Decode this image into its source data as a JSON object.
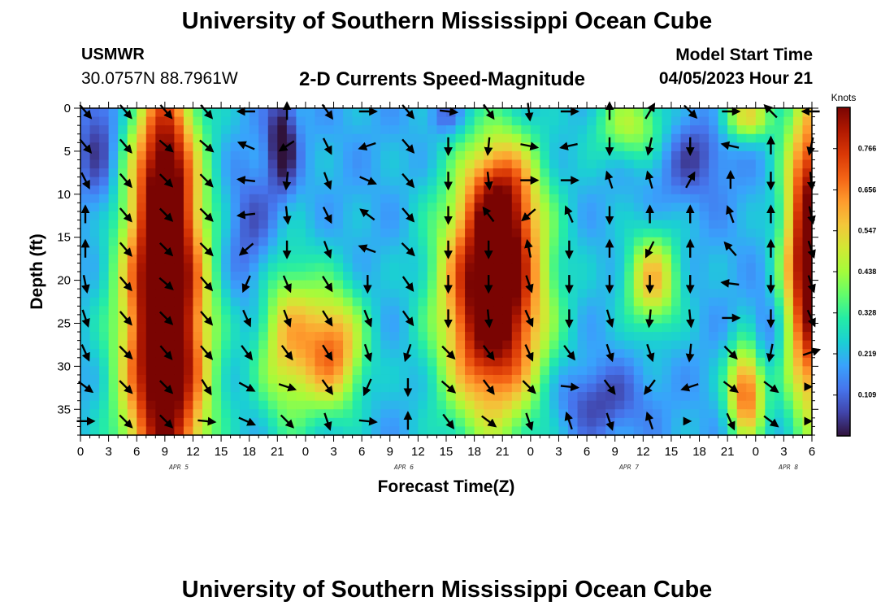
{
  "header": {
    "title": "University of Southern Mississippi Ocean Cube",
    "station": "USMWR",
    "coordinates": "30.0757N  88.7961W",
    "subtitle": "2-D Currents Speed-Magnitude",
    "model_start_label": "Model Start Time",
    "model_start_value": "04/05/2023 Hour 21"
  },
  "footer": {
    "title": "University of Southern Mississippi Ocean Cube"
  },
  "colors": {
    "arrow": "#000000",
    "colormap": [
      "#30123b",
      "#4145ab",
      "#4675ed",
      "#39a2fc",
      "#1bcfd4",
      "#24eca6",
      "#61fc6c",
      "#a4fc3b",
      "#d1e834",
      "#f3c63a",
      "#fe9b2d",
      "#f36315",
      "#d93806",
      "#b11901",
      "#7a0402"
    ]
  },
  "chart_data": {
    "type": "heatmap",
    "title": "2-D Currents Speed-Magnitude",
    "xlabel": "Forecast Time(Z)",
    "ylabel": "Depth (ft)",
    "xlim": [
      0,
      78
    ],
    "ylim": [
      38,
      0
    ],
    "y_ticks": [
      0,
      5,
      10,
      15,
      20,
      25,
      30,
      35
    ],
    "x_ticks": [
      0,
      3,
      6,
      9,
      12,
      15,
      18,
      21,
      24,
      27,
      30,
      33,
      36,
      39,
      42,
      45,
      48,
      51,
      54,
      57,
      60,
      63,
      66,
      69,
      72,
      75,
      78
    ],
    "x_tick_labels": [
      "0",
      "3",
      "6",
      "9",
      "12",
      "15",
      "18",
      "21",
      "0",
      "3",
      "6",
      "9",
      "12",
      "15",
      "18",
      "21",
      "0",
      "3",
      "6",
      "9",
      "12",
      "15",
      "18",
      "21",
      "0",
      "3",
      "6"
    ],
    "day_labels": [
      {
        "label": "APR 5",
        "x": 10.5
      },
      {
        "label": "APR 6",
        "x": 34.5
      },
      {
        "label": "APR 7",
        "x": 58.5
      },
      {
        "label": "APR 8",
        "x": 75.5
      }
    ],
    "colorbar": {
      "units": "Knots",
      "range": [
        0.0,
        0.876
      ],
      "ticks": [
        0.109,
        0.219,
        0.328,
        0.438,
        0.547,
        0.656,
        0.766
      ]
    },
    "speed_features": [
      {
        "x": 9,
        "y": 26,
        "sx": 3.2,
        "sy": 16,
        "v": 0.85
      },
      {
        "x": 9,
        "y": 6,
        "sx": 2.0,
        "sy": 8,
        "v": 0.36
      },
      {
        "x": 22,
        "y": 27,
        "sx": 2.3,
        "sy": 7,
        "v": 0.34
      },
      {
        "x": 27,
        "y": 28,
        "sx": 2.3,
        "sy": 5,
        "v": 0.45
      },
      {
        "x": 44,
        "y": 22,
        "sx": 3.8,
        "sy": 10,
        "v": 0.82
      },
      {
        "x": 45,
        "y": 10,
        "sx": 2.5,
        "sy": 5,
        "v": 0.32
      },
      {
        "x": 61,
        "y": 20,
        "sx": 2.0,
        "sy": 4,
        "v": 0.37
      },
      {
        "x": 71,
        "y": 33,
        "sx": 1.4,
        "sy": 4,
        "v": 0.5
      },
      {
        "x": 71,
        "y": 1,
        "sx": 2.0,
        "sy": 2,
        "v": 0.32
      },
      {
        "x": 78,
        "y": 17,
        "sx": 2.0,
        "sy": 13,
        "v": 0.8
      },
      {
        "x": 59,
        "y": 2,
        "sx": 3.0,
        "sy": 3,
        "v": 0.26
      },
      {
        "x": 21.5,
        "y": 4,
        "sx": 1.1,
        "sy": 4,
        "v": -0.24
      },
      {
        "x": 2,
        "y": 4,
        "sx": 1.6,
        "sy": 6,
        "v": -0.16
      },
      {
        "x": 18,
        "y": 15,
        "sx": 2.2,
        "sy": 6,
        "v": -0.13
      },
      {
        "x": 65,
        "y": 5,
        "sx": 3.0,
        "sy": 4,
        "v": -0.14
      },
      {
        "x": 55,
        "y": 34,
        "sx": 3.5,
        "sy": 3,
        "v": -0.14
      },
      {
        "x": 39,
        "y": 1,
        "sx": 1.2,
        "sy": 1.5,
        "v": -0.12
      },
      {
        "x": 73,
        "y": 26,
        "sx": 1.2,
        "sy": 3,
        "v": -0.1
      }
    ],
    "speed_base": 0.2,
    "vectors": {
      "x": [
        0,
        4.3,
        8.6,
        12.9,
        17.2,
        21.5,
        25.8,
        30.1,
        34.4,
        38.7,
        43.0,
        47.3,
        51.6,
        55.9,
        60.2,
        64.5,
        68.8,
        73.1,
        77.4
      ],
      "y": [
        0,
        4,
        8,
        12,
        16,
        20,
        24,
        28,
        32,
        36
      ],
      "u": [
        [
          0.6,
          0.6,
          0.6,
          0.6,
          -0.3,
          0.0,
          0.5,
          0.8,
          0.6,
          0.9,
          0.5,
          0.1,
          0.4,
          0.0,
          0.3,
          0.7,
          0.8,
          -0.7,
          -0.3
        ],
        [
          0.5,
          0.6,
          0.7,
          0.7,
          -0.7,
          -0.6,
          0.4,
          -0.6,
          0.6,
          0.0,
          -0.1,
          1.0,
          -0.9,
          0.0,
          -0.2,
          0.0,
          -0.9,
          0.0,
          -0.2
        ],
        [
          0.4,
          0.6,
          0.7,
          0.6,
          -0.9,
          -0.1,
          0.3,
          0.7,
          0.6,
          0.0,
          0.1,
          1.0,
          1.0,
          -0.3,
          -0.2,
          0.5,
          0.0,
          0.0,
          0.1
        ],
        [
          0.0,
          0.6,
          0.6,
          0.7,
          -0.9,
          0.1,
          0.4,
          -0.8,
          0.6,
          0.0,
          -0.6,
          -0.7,
          -0.4,
          0.0,
          0.0,
          0.0,
          -0.3,
          0.0,
          0.2
        ],
        [
          0.0,
          0.6,
          0.7,
          0.6,
          -0.7,
          0.0,
          0.3,
          -0.8,
          0.7,
          0.0,
          0.0,
          -0.2,
          0.0,
          0.0,
          -0.5,
          0.0,
          -0.7,
          0.0,
          0.3
        ],
        [
          0.2,
          0.6,
          0.7,
          0.6,
          -0.4,
          0.3,
          0.5,
          0.0,
          0.5,
          0.0,
          0.0,
          0.3,
          0.0,
          0.0,
          0.0,
          0.0,
          -0.8,
          0.0,
          0.3
        ],
        [
          0.3,
          0.6,
          0.7,
          0.6,
          0.4,
          0.3,
          0.5,
          0.4,
          0.5,
          0.0,
          0.1,
          0.4,
          0.0,
          0.3,
          -0.1,
          0.1,
          0.9,
          0.0,
          0.4
        ],
        [
          0.4,
          0.7,
          0.6,
          0.6,
          0.6,
          0.6,
          0.5,
          0.3,
          -0.3,
          0.7,
          0.6,
          0.4,
          0.6,
          0.3,
          0.3,
          -0.1,
          0.7,
          -0.2,
          0.9
        ],
        [
          0.8,
          0.7,
          0.7,
          0.5,
          0.9,
          0.9,
          0.5,
          -0.4,
          0.0,
          0.7,
          0.6,
          0.7,
          1.0,
          0.6,
          -0.6,
          -0.9,
          0.8,
          0.8,
          0.0
        ],
        [
          1.0,
          0.7,
          0.7,
          1.0,
          0.9,
          0.7,
          0.3,
          1.0,
          0.0,
          0.6,
          0.8,
          0.3,
          -0.3,
          0.3,
          -0.3,
          0.0,
          0.4,
          0.8,
          0.0
        ]
      ],
      "v": [
        [
          0.7,
          0.7,
          0.7,
          0.7,
          0.0,
          -0.1,
          0.7,
          0.0,
          0.7,
          0.1,
          0.7,
          0.8,
          0.0,
          -0.1,
          -0.5,
          0.7,
          0.0,
          -0.7,
          0.0
        ],
        [
          0.6,
          0.7,
          0.6,
          0.6,
          -0.3,
          0.4,
          0.8,
          0.2,
          0.7,
          0.7,
          1.0,
          0.2,
          0.2,
          0.9,
          0.9,
          0.8,
          -0.2,
          -0.5,
          0.9
        ],
        [
          0.8,
          0.7,
          0.7,
          0.6,
          -0.1,
          1.0,
          0.8,
          0.3,
          0.7,
          0.8,
          0.9,
          0.0,
          0.0,
          -0.9,
          -0.7,
          -0.9,
          -0.1,
          0.5,
          0.9
        ],
        [
          -1.0,
          0.7,
          0.6,
          0.7,
          0.1,
          0.9,
          0.8,
          -0.6,
          0.7,
          0.9,
          -0.8,
          0.6,
          -0.9,
          0.9,
          -1.0,
          -1.0,
          -0.8,
          -1.0,
          0.9
        ],
        [
          -1.0,
          0.7,
          0.7,
          0.6,
          0.6,
          1.0,
          0.8,
          -0.3,
          0.7,
          0.8,
          1.0,
          -1.0,
          1.0,
          -0.9,
          1.0,
          -1.0,
          -0.8,
          -1.0,
          0.9
        ],
        [
          1.0,
          0.7,
          0.6,
          0.7,
          0.9,
          0.7,
          0.8,
          1.0,
          0.7,
          1.0,
          1.0,
          0.9,
          1.0,
          1.0,
          1.0,
          1.0,
          -0.1,
          1.0,
          0.9
        ],
        [
          0.9,
          0.7,
          0.7,
          0.7,
          0.9,
          0.8,
          0.8,
          1.0,
          0.7,
          0.9,
          1.0,
          0.9,
          1.0,
          1.0,
          1.0,
          1.0,
          0.0,
          1.0,
          0.9
        ],
        [
          0.9,
          0.7,
          0.7,
          0.7,
          0.8,
          0.8,
          0.8,
          0.9,
          0.9,
          0.7,
          0.8,
          0.9,
          0.8,
          0.9,
          0.9,
          1.0,
          0.7,
          1.0,
          -0.3
        ],
        [
          0.6,
          0.7,
          0.7,
          0.8,
          0.5,
          0.3,
          0.7,
          0.9,
          1.0,
          0.6,
          0.8,
          0.7,
          0.1,
          0.8,
          0.8,
          0.3,
          0.6,
          0.6,
          0.0
        ],
        [
          0.0,
          0.7,
          0.7,
          0.1,
          0.4,
          0.7,
          0.9,
          0.1,
          -1.0,
          0.8,
          0.6,
          0.9,
          -0.9,
          0.9,
          -0.9,
          0.0,
          0.9,
          0.6,
          0.0
        ]
      ]
    }
  }
}
